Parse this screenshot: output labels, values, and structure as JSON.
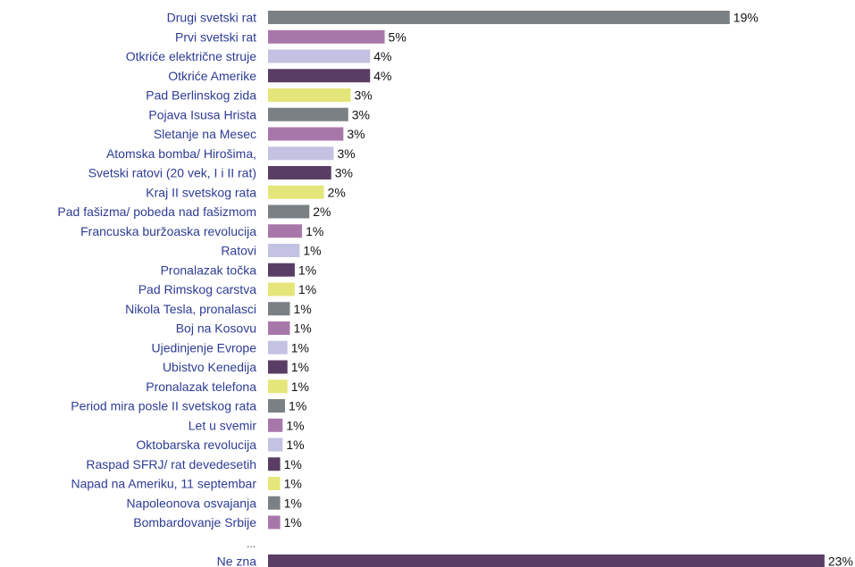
{
  "chart_data": {
    "type": "bar",
    "orientation": "horizontal",
    "value_suffix": "%",
    "categories": [
      "Drugi svetski rat",
      "Prvi svetski rat",
      "Otkriće električne struje",
      "Otkriće Amerike",
      "Pad Berlinskog zida",
      "Pojava Isusa Hrista",
      "Sletanje na Mesec",
      "Atomska bomba/ Hirošima,",
      "Svetski ratovi (20 vek, I i II rat)",
      "Kraj II svetskog rata",
      "Pad fašizma/ pobeda nad fašizmom",
      "Francuska buržoaska revolucija",
      "Ratovi",
      "Pronalazak točka",
      "Pad Rimskog carstva",
      "Nikola Tesla, pronalasci",
      "Boj na Kosovu",
      "Ujedinjenje Evrope",
      "Ubistvo Kenedija",
      "Pronalazak telefona",
      "Period mira posle II svetskog rata",
      "Let u svemir",
      "Oktobarska revolucija",
      "Raspad SFRJ/ rat devedesetih",
      "Napad na Ameriku, 11 septembar",
      "Napoleonova osvajanja",
      "Bombardovanje Srbije",
      "Ne zna"
    ],
    "values": [
      19,
      5,
      4,
      4,
      3,
      3,
      3,
      3,
      3,
      2,
      2,
      1,
      1,
      1,
      1,
      1,
      1,
      1,
      1,
      1,
      1,
      1,
      1,
      1,
      1,
      1,
      1,
      23
    ],
    "bar_lengths_approx": [
      19.0,
      4.8,
      4.2,
      4.2,
      3.4,
      3.3,
      3.1,
      2.7,
      2.6,
      2.3,
      1.7,
      1.4,
      1.3,
      1.1,
      1.1,
      0.9,
      0.9,
      0.8,
      0.8,
      0.8,
      0.7,
      0.6,
      0.6,
      0.5,
      0.5,
      0.5,
      0.5,
      22.9
    ],
    "value_labels": [
      "19%",
      "5%",
      "4%",
      "4%",
      "3%",
      "3%",
      "3%",
      "3%",
      "3%",
      "2%",
      "2%",
      "1%",
      "1%",
      "1%",
      "1%",
      "1%",
      "1%",
      "1%",
      "1%",
      "1%",
      "1%",
      "1%",
      "1%",
      "1%",
      "1%",
      "1%",
      "1%",
      "23%"
    ],
    "ellipsis": "...",
    "xlim": [
      0,
      23
    ],
    "grid": false,
    "colors": [
      "#7a8083",
      "#a877aa",
      "#c3c2e2",
      "#5a3d65",
      "#e5e67a"
    ],
    "last_bar_color": "#5a3d65"
  }
}
